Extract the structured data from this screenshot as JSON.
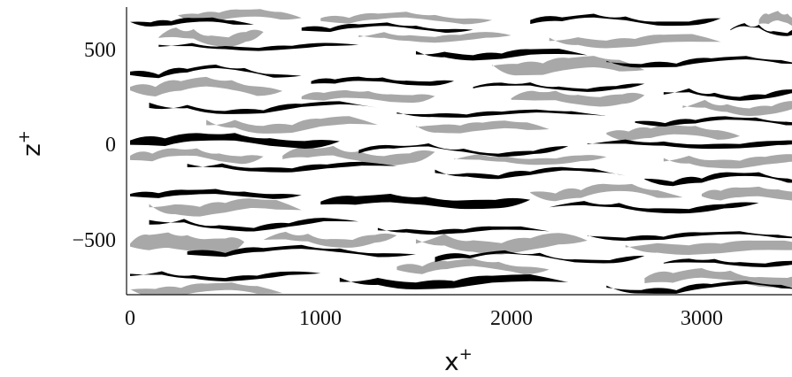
{
  "chart_data": {
    "type": "heatmap",
    "title": "",
    "xlabel": "x",
    "xlabel_sup": "+",
    "ylabel": "z",
    "ylabel_sup": "+",
    "xlim": [
      0,
      3600
    ],
    "ylim": [
      -800,
      700
    ],
    "x_ticks": [
      0,
      1000,
      2000,
      3000
    ],
    "x_tick_labels": [
      "0",
      "1000",
      "2000",
      "3000"
    ],
    "y_ticks": [
      500,
      0,
      -500
    ],
    "y_tick_labels": [
      "500",
      "0",
      "−500"
    ],
    "grid": false,
    "legend": "none",
    "colors": {
      "high": "#a8a8a8",
      "low": "#000000",
      "background": "#ffffff"
    },
    "low_streaks": [
      {
        "x": [
          0,
          650
        ],
        "z": 640,
        "w": 22
      },
      {
        "x": [
          900,
          1800
        ],
        "z": 610,
        "w": 18
      },
      {
        "x": [
          2100,
          3100
        ],
        "z": 650,
        "w": 20
      },
      {
        "x": [
          3150,
          3600
        ],
        "z": 600,
        "w": 16
      },
      {
        "x": [
          150,
          1200
        ],
        "z": 510,
        "w": 16
      },
      {
        "x": [
          1500,
          2400
        ],
        "z": 470,
        "w": 28
      },
      {
        "x": [
          2500,
          3600
        ],
        "z": 430,
        "w": 18
      },
      {
        "x": [
          0,
          900
        ],
        "z": 380,
        "w": 18
      },
      {
        "x": [
          950,
          1700
        ],
        "z": 330,
        "w": 22
      },
      {
        "x": [
          1800,
          2700
        ],
        "z": 300,
        "w": 16
      },
      {
        "x": [
          2800,
          3600
        ],
        "z": 260,
        "w": 20
      },
      {
        "x": [
          100,
          1300
        ],
        "z": 190,
        "w": 16
      },
      {
        "x": [
          1400,
          2500
        ],
        "z": 160,
        "w": 16
      },
      {
        "x": [
          2650,
          3600
        ],
        "z": 120,
        "w": 18
      },
      {
        "x": [
          0,
          1100
        ],
        "z": 20,
        "w": 40
      },
      {
        "x": [
          1200,
          2300
        ],
        "z": -30,
        "w": 16
      },
      {
        "x": [
          2400,
          3600
        ],
        "z": 0,
        "w": 22
      },
      {
        "x": [
          300,
          1400
        ],
        "z": -120,
        "w": 20
      },
      {
        "x": [
          1600,
          2600
        ],
        "z": -150,
        "w": 18
      },
      {
        "x": [
          2700,
          3600
        ],
        "z": -180,
        "w": 22
      },
      {
        "x": [
          0,
          900
        ],
        "z": -260,
        "w": 26
      },
      {
        "x": [
          1000,
          2100
        ],
        "z": -300,
        "w": 44
      },
      {
        "x": [
          2200,
          3300
        ],
        "z": -330,
        "w": 22
      },
      {
        "x": [
          100,
          1200
        ],
        "z": -420,
        "w": 18
      },
      {
        "x": [
          1300,
          2200
        ],
        "z": -450,
        "w": 18
      },
      {
        "x": [
          2400,
          3600
        ],
        "z": -480,
        "w": 16
      },
      {
        "x": [
          300,
          1500
        ],
        "z": -560,
        "w": 20
      },
      {
        "x": [
          1600,
          2700
        ],
        "z": -590,
        "w": 16
      },
      {
        "x": [
          2800,
          3600
        ],
        "z": -620,
        "w": 20
      },
      {
        "x": [
          0,
          1000
        ],
        "z": -690,
        "w": 18
      },
      {
        "x": [
          1100,
          2300
        ],
        "z": -720,
        "w": 36
      },
      {
        "x": [
          2500,
          3600
        ],
        "z": -750,
        "w": 18
      }
    ],
    "high_streaks": [
      {
        "x": [
          250,
          900
        ],
        "z": 675,
        "w": 40
      },
      {
        "x": [
          1000,
          1900
        ],
        "z": 660,
        "w": 30
      },
      {
        "x": [
          3300,
          3600
        ],
        "z": 650,
        "w": 50
      },
      {
        "x": [
          150,
          700
        ],
        "z": 560,
        "w": 50
      },
      {
        "x": [
          1200,
          2000
        ],
        "z": 560,
        "w": 30
      },
      {
        "x": [
          2200,
          3100
        ],
        "z": 540,
        "w": 40
      },
      {
        "x": [
          1900,
          2700
        ],
        "z": 410,
        "w": 60
      },
      {
        "x": [
          0,
          800
        ],
        "z": 300,
        "w": 50
      },
      {
        "x": [
          900,
          1600
        ],
        "z": 250,
        "w": 40
      },
      {
        "x": [
          2000,
          2700
        ],
        "z": 240,
        "w": 50
      },
      {
        "x": [
          2900,
          3600
        ],
        "z": 190,
        "w": 40
      },
      {
        "x": [
          400,
          1300
        ],
        "z": 100,
        "w": 40
      },
      {
        "x": [
          1500,
          2200
        ],
        "z": 90,
        "w": 40
      },
      {
        "x": [
          2500,
          3200
        ],
        "z": 60,
        "w": 50
      },
      {
        "x": [
          0,
          700
        ],
        "z": -60,
        "w": 40
      },
      {
        "x": [
          800,
          1600
        ],
        "z": -60,
        "w": 50
      },
      {
        "x": [
          1700,
          2500
        ],
        "z": -80,
        "w": 30
      },
      {
        "x": [
          2800,
          3600
        ],
        "z": -90,
        "w": 40
      },
      {
        "x": [
          100,
          900
        ],
        "z": -330,
        "w": 50
      },
      {
        "x": [
          2100,
          2900
        ],
        "z": -250,
        "w": 40
      },
      {
        "x": [
          3000,
          3600
        ],
        "z": -260,
        "w": 50
      },
      {
        "x": [
          0,
          600
        ],
        "z": -520,
        "w": 80
      },
      {
        "x": [
          700,
          1400
        ],
        "z": -500,
        "w": 40
      },
      {
        "x": [
          1500,
          2400
        ],
        "z": -520,
        "w": 60
      },
      {
        "x": [
          2600,
          3600
        ],
        "z": -540,
        "w": 50
      },
      {
        "x": [
          0,
          800
        ],
        "z": -760,
        "w": 40
      },
      {
        "x": [
          1400,
          2200
        ],
        "z": -640,
        "w": 40
      },
      {
        "x": [
          2700,
          3600
        ],
        "z": -700,
        "w": 50
      }
    ]
  }
}
